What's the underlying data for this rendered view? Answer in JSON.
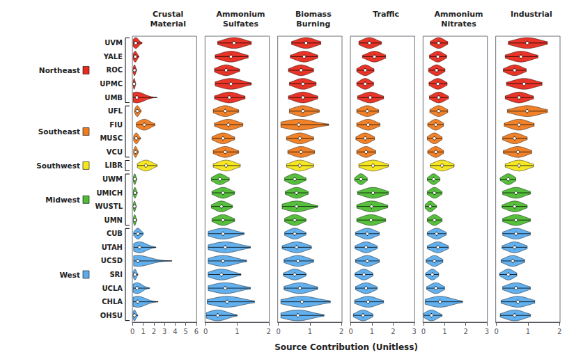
{
  "chart_data": {
    "type": "violin",
    "orientation": "horizontal",
    "grid": false,
    "xlabel": "Source Contribution (Unitless)",
    "categories": [
      "UVM",
      "YALE",
      "ROC",
      "UPMC",
      "UMB",
      "UFL",
      "FIU",
      "MUSC",
      "VCU",
      "LIBR",
      "UWM",
      "UMICH",
      "WUSTL",
      "UMN",
      "CUB",
      "UTAH",
      "UCSD",
      "SRI",
      "UCLA",
      "CHLA",
      "OHSU"
    ],
    "groups": [
      {
        "name": "Northeast",
        "color": "#E8291C",
        "sites": [
          "UVM",
          "YALE",
          "ROC",
          "UPMC",
          "UMB"
        ]
      },
      {
        "name": "Southeast",
        "color": "#F07B1D",
        "sites": [
          "UFL",
          "FIU",
          "MUSC",
          "VCU"
        ]
      },
      {
        "name": "Southwest",
        "color": "#F5E619",
        "sites": [
          "LIBR"
        ]
      },
      {
        "name": "Midwest",
        "color": "#4DBD33",
        "sites": [
          "UWM",
          "UMICH",
          "WUSTL",
          "UMN"
        ]
      },
      {
        "name": "West",
        "color": "#5AACED",
        "sites": [
          "CUB",
          "UTAH",
          "UCSD",
          "SRI",
          "UCLA",
          "CHLA",
          "OHSU"
        ]
      }
    ],
    "panels": [
      {
        "title": "Crustal\nMaterial",
        "xlim": [
          -0.02,
          6.02
        ],
        "xticks": [
          0,
          1,
          2,
          3,
          4,
          5,
          6
        ],
        "median": [
          0.3,
          0.25,
          0.18,
          0.15,
          0.4,
          0.45,
          1.1,
          0.35,
          0.28,
          1.25,
          0.2,
          0.22,
          0.18,
          0.2,
          0.5,
          0.65,
          0.5,
          0.22,
          0.42,
          0.48,
          0.18
        ],
        "min": [
          0.05,
          0.05,
          0.05,
          0.05,
          0.05,
          0.2,
          0.35,
          0.1,
          0.1,
          0.45,
          0.08,
          0.08,
          0.07,
          0.08,
          0.1,
          0.1,
          0.1,
          0.05,
          0.05,
          0.05,
          0.05
        ],
        "max": [
          0.9,
          0.6,
          0.38,
          0.3,
          2.3,
          0.8,
          2.1,
          0.75,
          0.55,
          2.3,
          0.4,
          0.45,
          0.35,
          0.4,
          1.0,
          2.2,
          3.7,
          0.5,
          1.6,
          2.4,
          0.5
        ]
      },
      {
        "title": "Ammonium\nSulfates",
        "xlim": [
          -0.02,
          2.02
        ],
        "xticks": [
          0,
          1,
          2
        ],
        "median": [
          0.9,
          0.8,
          0.65,
          0.8,
          0.75,
          0.62,
          0.72,
          0.55,
          0.62,
          0.65,
          0.45,
          0.55,
          0.5,
          0.55,
          0.55,
          0.62,
          0.55,
          0.5,
          0.62,
          0.68,
          0.38
        ],
        "min": [
          0.38,
          0.3,
          0.28,
          0.3,
          0.28,
          0.24,
          0.28,
          0.2,
          0.24,
          0.24,
          0.18,
          0.2,
          0.18,
          0.2,
          0.08,
          0.08,
          0.08,
          0.08,
          0.08,
          0.05,
          0.02
        ],
        "max": [
          1.45,
          1.35,
          1.08,
          1.45,
          1.25,
          1.05,
          1.18,
          0.92,
          1.05,
          1.1,
          0.75,
          0.92,
          0.85,
          0.92,
          1.22,
          1.42,
          1.3,
          1.12,
          1.42,
          1.55,
          1.0
        ]
      },
      {
        "title": "Biomass\nBurning",
        "xlim": [
          -0.02,
          2.02
        ],
        "xticks": [
          0,
          1,
          2
        ],
        "median": [
          0.88,
          0.82,
          0.72,
          0.78,
          0.78,
          0.78,
          0.65,
          0.68,
          0.72,
          0.68,
          0.52,
          0.58,
          0.58,
          0.52,
          0.52,
          0.58,
          0.62,
          0.52,
          0.68,
          0.75,
          0.62
        ],
        "min": [
          0.42,
          0.38,
          0.32,
          0.35,
          0.32,
          0.35,
          0.08,
          0.26,
          0.3,
          0.26,
          0.2,
          0.22,
          0.12,
          0.2,
          0.2,
          0.12,
          0.18,
          0.16,
          0.18,
          0.08,
          0.08
        ],
        "max": [
          1.35,
          1.25,
          1.12,
          1.2,
          1.25,
          1.3,
          1.6,
          1.12,
          1.15,
          1.12,
          0.88,
          0.95,
          1.25,
          0.88,
          0.88,
          1.05,
          1.12,
          0.88,
          1.25,
          1.65,
          1.45
        ]
      },
      {
        "title": "Traffic",
        "xlim": [
          -0.02,
          3.02
        ],
        "xticks": [
          0,
          1,
          2,
          3
        ],
        "median": [
          0.88,
          1.12,
          0.68,
          0.68,
          0.92,
          0.78,
          0.82,
          0.68,
          0.72,
          1.05,
          0.48,
          1.05,
          0.98,
          0.95,
          0.78,
          0.72,
          0.78,
          0.62,
          0.72,
          0.82,
          0.58
        ],
        "min": [
          0.38,
          0.55,
          0.28,
          0.28,
          0.32,
          0.28,
          0.28,
          0.24,
          0.28,
          0.38,
          0.18,
          0.32,
          0.28,
          0.28,
          0.22,
          0.2,
          0.22,
          0.2,
          0.22,
          0.18,
          0.12
        ],
        "max": [
          1.45,
          1.65,
          1.1,
          1.08,
          1.55,
          1.32,
          1.38,
          1.12,
          1.18,
          1.78,
          0.78,
          1.78,
          1.75,
          1.65,
          1.35,
          1.25,
          1.35,
          1.05,
          1.25,
          1.55,
          1.05
        ]
      },
      {
        "title": "Ammonium\nNitrates",
        "xlim": [
          -0.02,
          3.02
        ],
        "xticks": [
          0,
          1,
          2,
          3
        ],
        "median": [
          0.72,
          0.68,
          0.62,
          0.68,
          0.72,
          0.72,
          0.58,
          0.52,
          0.58,
          0.88,
          0.48,
          0.52,
          0.32,
          0.52,
          0.62,
          0.68,
          0.52,
          0.42,
          0.58,
          0.78,
          0.38
        ],
        "min": [
          0.32,
          0.28,
          0.24,
          0.26,
          0.28,
          0.3,
          0.2,
          0.18,
          0.2,
          0.32,
          0.18,
          0.18,
          0.08,
          0.18,
          0.18,
          0.18,
          0.12,
          0.1,
          0.15,
          0.08,
          0.02
        ],
        "max": [
          1.15,
          1.1,
          1.02,
          1.12,
          1.18,
          1.15,
          0.95,
          0.88,
          0.95,
          1.45,
          0.78,
          0.88,
          0.62,
          0.88,
          1.08,
          1.18,
          0.92,
          0.72,
          1.0,
          1.85,
          0.88
        ]
      },
      {
        "title": "Industrial",
        "xlim": [
          -0.02,
          2.02
        ],
        "xticks": [
          0,
          1,
          2
        ],
        "median": [
          0.98,
          0.78,
          0.58,
          0.88,
          0.72,
          0.98,
          0.72,
          0.58,
          0.68,
          0.72,
          0.38,
          0.62,
          0.58,
          0.62,
          0.62,
          0.58,
          0.52,
          0.38,
          0.62,
          0.68,
          0.58
        ],
        "min": [
          0.38,
          0.28,
          0.22,
          0.32,
          0.28,
          0.35,
          0.25,
          0.2,
          0.22,
          0.28,
          0.12,
          0.2,
          0.18,
          0.2,
          0.2,
          0.18,
          0.15,
          0.1,
          0.2,
          0.15,
          0.12
        ],
        "max": [
          1.62,
          1.32,
          0.95,
          1.45,
          1.18,
          1.62,
          1.2,
          0.98,
          1.12,
          1.18,
          0.62,
          1.08,
          0.98,
          1.08,
          1.08,
          0.98,
          0.9,
          0.65,
          1.08,
          1.22,
          1.08
        ]
      }
    ]
  }
}
